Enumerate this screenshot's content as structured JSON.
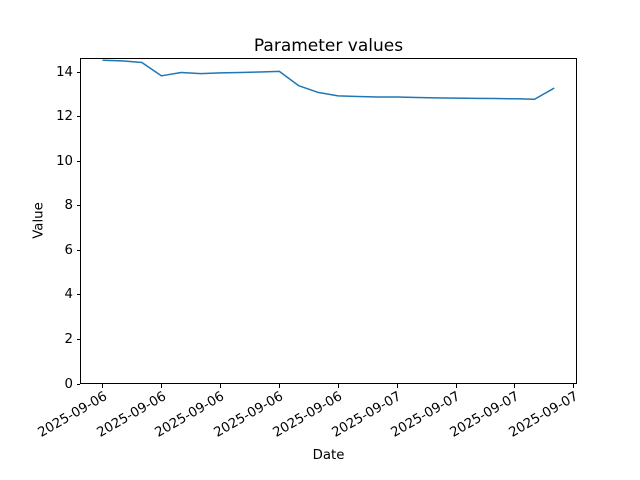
{
  "chart_data": {
    "type": "line",
    "title": "Parameter values",
    "xlabel": "Date",
    "ylabel": "Value",
    "line_color": "#1f77b4",
    "background_color": "#ffffff",
    "grid": false,
    "legend_position": "none",
    "ylim": [
      0,
      14.65
    ],
    "xlim_hours": [
      -1.15,
      24.15
    ],
    "y_ticks": [
      0,
      2,
      4,
      6,
      8,
      10,
      12,
      14
    ],
    "x_ticks": [
      {
        "hour": 0,
        "label": "2025-09-06"
      },
      {
        "hour": 3,
        "label": "2025-09-06"
      },
      {
        "hour": 6,
        "label": "2025-09-06"
      },
      {
        "hour": 9,
        "label": "2025-09-06"
      },
      {
        "hour": 12,
        "label": "2025-09-06"
      },
      {
        "hour": 15,
        "label": "2025-09-07"
      },
      {
        "hour": 18,
        "label": "2025-09-07"
      },
      {
        "hour": 21,
        "label": "2025-09-07"
      },
      {
        "hour": 24,
        "label": "2025-09-07"
      }
    ],
    "series": [
      {
        "name": "Parameter values",
        "x_hours": [
          0,
          1,
          2,
          3,
          4,
          5,
          6,
          7,
          8,
          9,
          10,
          11,
          12,
          13,
          14,
          15,
          16,
          17,
          18,
          19,
          20,
          21,
          22,
          23
        ],
        "values": [
          14.55,
          14.52,
          14.45,
          13.85,
          14.0,
          13.95,
          13.98,
          14.0,
          14.02,
          14.05,
          13.4,
          13.1,
          12.95,
          12.92,
          12.9,
          12.9,
          12.88,
          12.86,
          12.85,
          12.84,
          12.83,
          12.82,
          12.8,
          13.3
        ]
      }
    ]
  }
}
